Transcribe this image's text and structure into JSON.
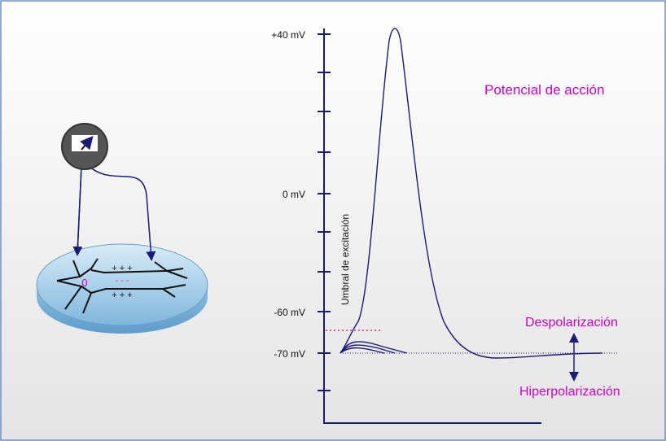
{
  "axis": {
    "labels": [
      "+40 mV",
      "0 mV",
      "-60 mV",
      "-70 mV"
    ],
    "threshold_label": "Umbral de excitación"
  },
  "title": "Potencial de acción",
  "annotations": {
    "depolarization": "Despolarización",
    "hyperpolarization": "Hiperpolarización"
  },
  "neuron": {
    "marker": "0",
    "top_charges": "+ + +",
    "inner_charges": "- - -",
    "bottom_charges": "+ + +"
  }
}
